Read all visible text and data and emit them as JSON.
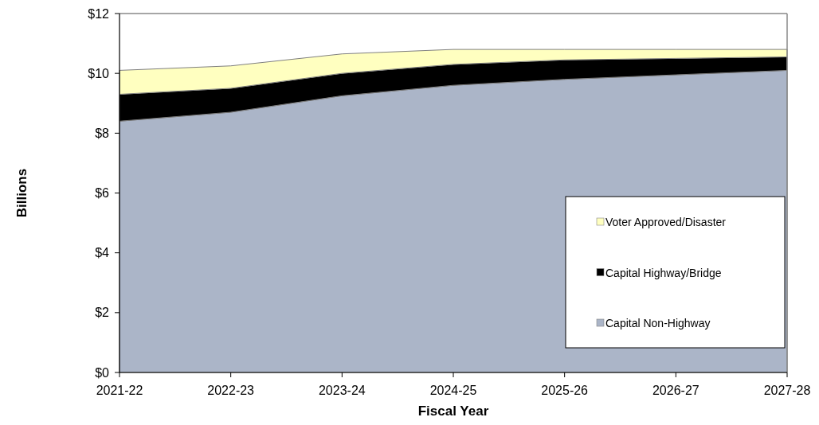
{
  "chart_data": {
    "type": "area",
    "stacked": true,
    "xlabel": "Fiscal Year",
    "ylabel": "Billions",
    "categories": [
      "2021-22",
      "2022-23",
      "2023-24",
      "2024-25",
      "2025-26",
      "2026-27",
      "2027-28"
    ],
    "series": [
      {
        "name": "Capital Non-Highway",
        "color": "#abb5c8",
        "values": [
          8.4,
          8.7,
          9.25,
          9.6,
          9.8,
          9.95,
          10.1
        ]
      },
      {
        "name": "Capital Highway/Bridge",
        "color": "#000000",
        "values": [
          0.9,
          0.8,
          0.75,
          0.7,
          0.65,
          0.55,
          0.45
        ]
      },
      {
        "name": "Voter Approved/Disaster",
        "color": "#ffffc0",
        "values": [
          0.8,
          0.75,
          0.65,
          0.5,
          0.35,
          0.3,
          0.25
        ]
      }
    ],
    "ylim": [
      0,
      12
    ],
    "yticks": [
      {
        "value": 0,
        "label": "$0"
      },
      {
        "value": 2,
        "label": "$2"
      },
      {
        "value": 4,
        "label": "$4"
      },
      {
        "value": 6,
        "label": "$6"
      },
      {
        "value": 8,
        "label": "$8"
      },
      {
        "value": 10,
        "label": "$10"
      },
      {
        "value": 12,
        "label": "$12"
      }
    ],
    "legend": "bottom right"
  }
}
